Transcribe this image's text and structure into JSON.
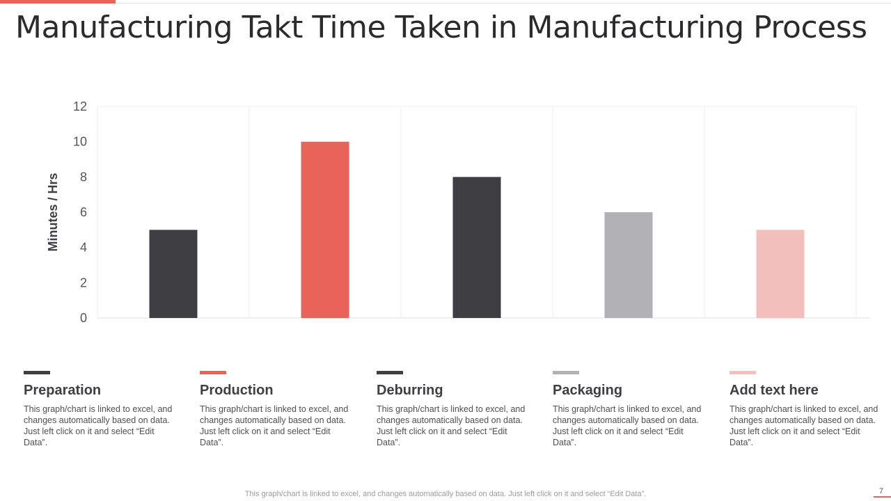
{
  "slide": {
    "title": "Manufacturing Takt Time Taken in Manufacturing Process",
    "footer_note": "This graph/chart is linked to excel,  and changes automatically based on data. Just left click on it and select “Edit Data”.",
    "page_number": "7",
    "accent_color": "#e8645a"
  },
  "chart_data": {
    "type": "bar",
    "categories": [
      "Preparation",
      "Production",
      "Deburring",
      "Packaging",
      "Add text here"
    ],
    "values": [
      5,
      10,
      8,
      6,
      5
    ],
    "colors": [
      "#3f3e43",
      "#e8645a",
      "#3f3e43",
      "#b1b0b4",
      "#f4c0bb"
    ],
    "ylabel": "Minutes / Hrs",
    "xlabel": "",
    "ylim": [
      0,
      12
    ],
    "yticks": [
      0,
      2,
      4,
      6,
      8,
      10,
      12
    ],
    "grid": "vertical separators between categories",
    "legend_position": "bottom"
  },
  "legend": [
    {
      "name": "Preparation",
      "color": "#3f3e43",
      "desc": "This graph/chart is linked to excel, and changes automatically based on data. Just left click on it and select “Edit Data”."
    },
    {
      "name": "Production",
      "color": "#e8645a",
      "desc": "This graph/chart is linked to excel, and changes automatically based on data. Just left click on it and select “Edit Data”."
    },
    {
      "name": "Deburring",
      "color": "#3f3e43",
      "desc": "This graph/chart is linked to excel, and changes automatically based on data. Just left click on it and select “Edit Data”."
    },
    {
      "name": "Packaging",
      "color": "#b1b0b4",
      "desc": "This graph/chart is linked to excel, and changes automatically based on data. Just left click on it and select “Edit Data”."
    },
    {
      "name": "Add text here",
      "color": "#f4c0bb",
      "desc": "This graph/chart is linked to excel, and changes automatically based on data. Just left click on it and select “Edit Data”."
    }
  ]
}
